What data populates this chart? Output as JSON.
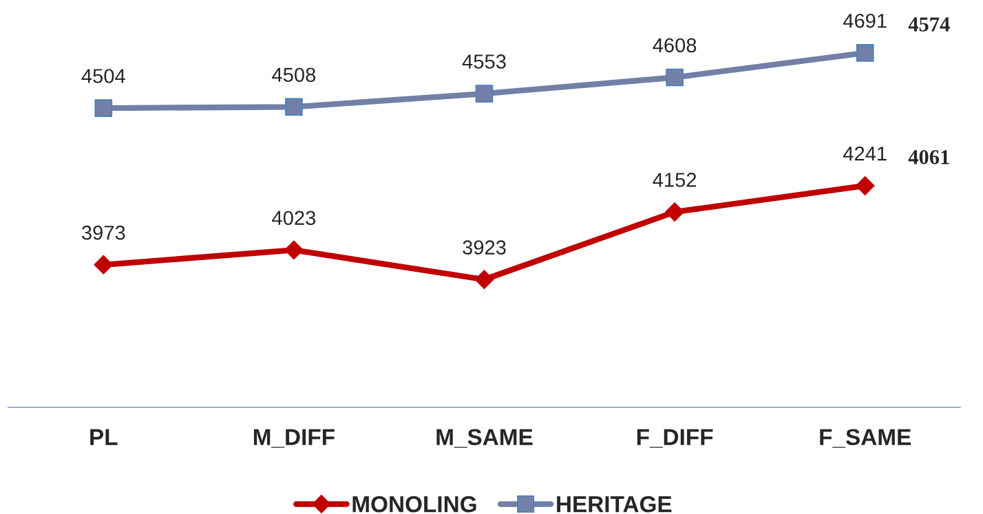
{
  "chart_data": {
    "type": "line",
    "categories": [
      "PL",
      "M_DIFF",
      "M_SAME",
      "F_DIFF",
      "F_SAME"
    ],
    "series": [
      {
        "name": "MONOLING",
        "color": "#c00000",
        "marker": "diamond",
        "values": [
          3973,
          4023,
          3923,
          4152,
          4241
        ]
      },
      {
        "name": "HERITAGE",
        "color": "#7280a8",
        "marker": "square",
        "values": [
          4504,
          4508,
          4553,
          4608,
          4691
        ]
      }
    ],
    "annotations": [
      "4061",
      "4574"
    ],
    "data_labels": true,
    "grid": false,
    "legend": "bottom",
    "line_style": "solid"
  }
}
